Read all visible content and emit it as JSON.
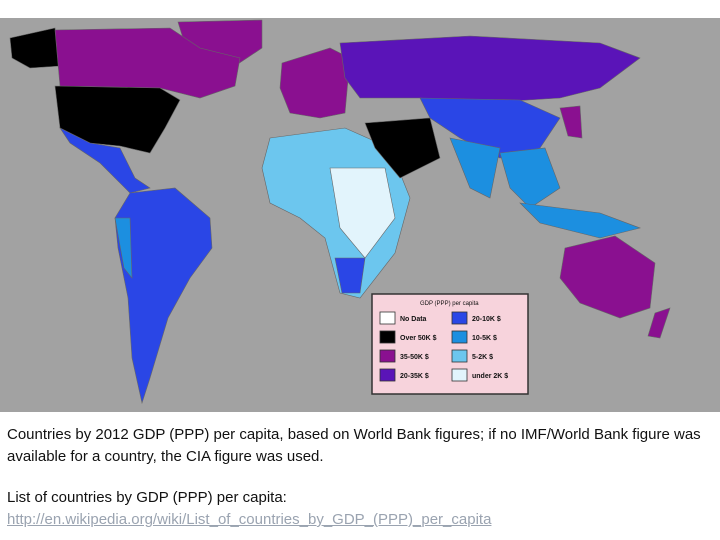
{
  "map": {
    "legend": {
      "title": "GDP (PPP) per capita",
      "items": [
        {
          "label": "No Data",
          "color": "#ffffff"
        },
        {
          "label": "Over 50K $",
          "color": "#000000"
        },
        {
          "label": "35-50K $",
          "color": "#8a1090"
        },
        {
          "label": "20-35K $",
          "color": "#5a14b8"
        },
        {
          "label": "20-10K $",
          "color": "#2a46e6"
        },
        {
          "label": "10-5K $",
          "color": "#1c8fe0"
        },
        {
          "label": "5-2K $",
          "color": "#6cc6ee"
        },
        {
          "label": "under 2K $",
          "color": "#e2f4fc"
        }
      ]
    }
  },
  "caption": {
    "description": "Countries by 2012 GDP (PPP) per capita, based on World Bank figures; if no IMF/World Bank figure was available for a country, the CIA figure was used.",
    "link_intro": "List of countries by GDP (PPP) per capita:",
    "link": "http://en.wikipedia.org/wiki/List_of_countries_by_GDP_(PPP)_per_capita"
  }
}
